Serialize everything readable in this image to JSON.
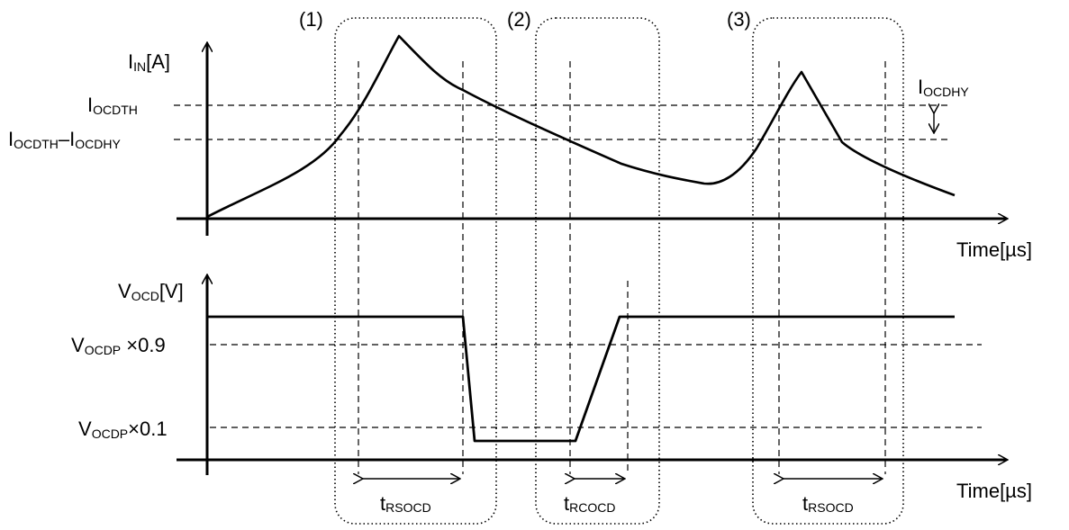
{
  "diagram": {
    "regions": [
      {
        "label": "(1)"
      },
      {
        "label": "(2)"
      },
      {
        "label": "(3)"
      }
    ],
    "top_axis": {
      "y_label_main": "I",
      "y_label_sub": "IN",
      "y_label_unit": "[A]",
      "x_label": "Time[µs]"
    },
    "bottom_axis": {
      "y_label_main": "V",
      "y_label_sub": "OCD",
      "y_label_unit": "[V]",
      "x_label": "Time[µs]"
    },
    "levels": {
      "iocdth_main": "I",
      "iocdth_sub": "OCDTH",
      "iocdth_hy_main1": "I",
      "iocdth_hy_sub1": "OCDTH",
      "iocdth_hy_dash": "–I",
      "iocdth_hy_sub2": "OCDHY",
      "iocdhy_main": "I",
      "iocdhy_sub": "OCDHY",
      "v09_main": "V",
      "v09_sub": "OCDP",
      "v09_factor": " ×0.9",
      "v01_main": "V",
      "v01_sub": "OCDP",
      "v01_factor": "×0.1"
    },
    "timings": [
      {
        "main": "t",
        "sub": "RSOCD"
      },
      {
        "main": "t",
        "sub": "RCOCD"
      },
      {
        "main": "t",
        "sub": "RSOCD"
      }
    ],
    "colors": {
      "stroke": "#000000",
      "background": "#ffffff"
    }
  }
}
